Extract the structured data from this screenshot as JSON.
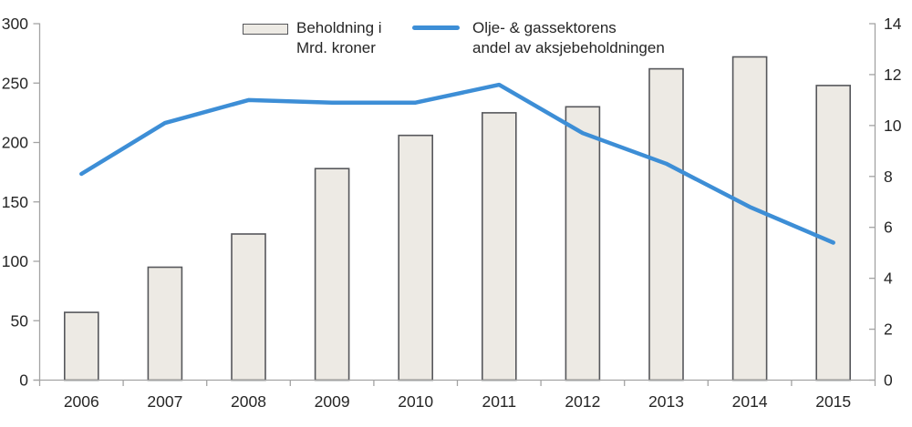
{
  "colors": {
    "bar_fill": "#edeae4",
    "bar_stroke": "#56575b",
    "line_blue": "#3d8ed6",
    "axis_gray": "#a3a3a3",
    "text_dark": "#262626"
  },
  "legend": {
    "items": [
      {
        "swatch": "bar",
        "lines": [
          "Beholdning i",
          "Mrd. kroner"
        ]
      },
      {
        "swatch": "line",
        "lines": [
          "Olje- & gassektorens",
          "andel av aksjebeholdningen"
        ]
      }
    ]
  },
  "chart_data": {
    "type": "combo",
    "categories": [
      "2006",
      "2007",
      "2008",
      "2009",
      "2010",
      "2011",
      "2012",
      "2013",
      "2014",
      "2015"
    ],
    "series": [
      {
        "name": "Beholdning i Mrd. kroner",
        "type": "bar",
        "axis": "left",
        "values": [
          57,
          95,
          123,
          178,
          206,
          225,
          230,
          262,
          272,
          248
        ]
      },
      {
        "name": "Olje- & gassektorens andel av aksjebeholdningen",
        "type": "line",
        "axis": "right",
        "values": [
          8.1,
          10.1,
          11.0,
          10.9,
          10.9,
          11.6,
          9.7,
          8.5,
          6.8,
          5.4
        ]
      }
    ],
    "left_axis": {
      "min": 0,
      "max": 300,
      "ticks": [
        0,
        50,
        100,
        150,
        200,
        250,
        300
      ]
    },
    "right_axis": {
      "min": 0,
      "max": 14,
      "ticks": [
        0,
        2,
        4,
        6,
        8,
        10,
        12,
        14
      ]
    },
    "grid": false,
    "legend_position": "top",
    "title": "",
    "xlabel": "",
    "ylabel_left": "Beholdning i Mrd. kroner",
    "ylabel_right": "Olje- & gassektorens andel av aksjebeholdningen"
  }
}
